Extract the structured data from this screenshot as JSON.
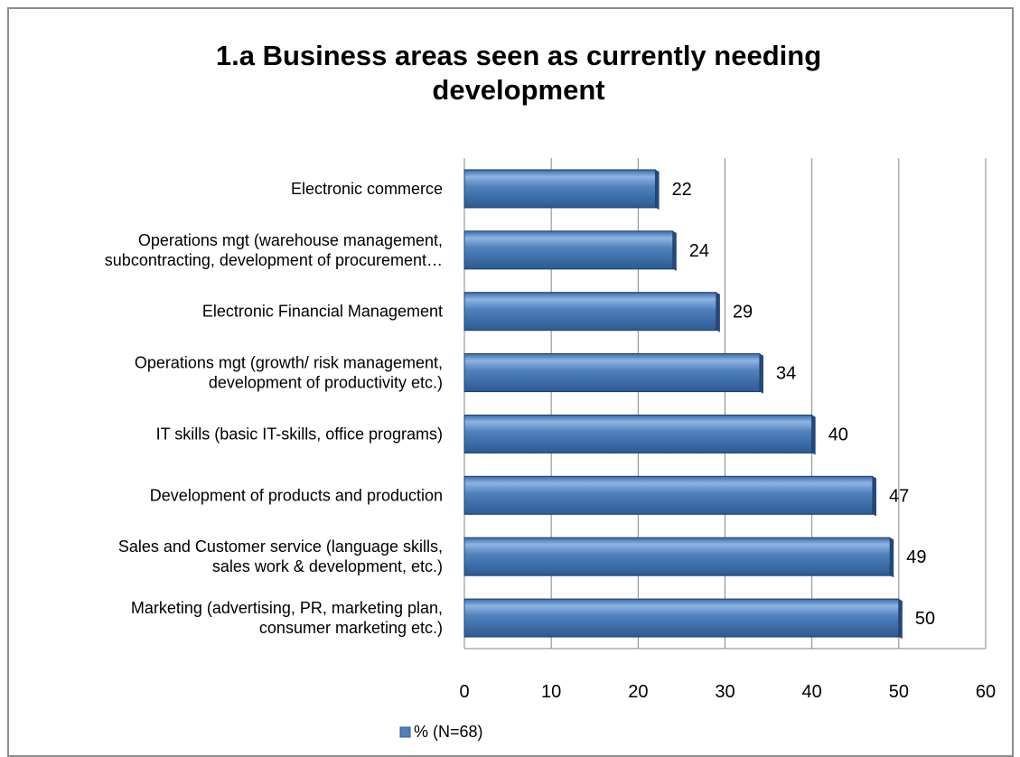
{
  "chart_data": {
    "type": "bar",
    "orientation": "horizontal",
    "title_lines": [
      "1.a Business areas seen as currently needing",
      "development"
    ],
    "categories": [
      [
        "Electronic commerce"
      ],
      [
        "Operations mgt (warehouse management,",
        "subcontracting, development of procurement…"
      ],
      [
        "Electronic Financial Management"
      ],
      [
        "Operations mgt (growth/ risk management,",
        "development of productivity etc.)"
      ],
      [
        "IT skills (basic IT-skills, office programs)"
      ],
      [
        "Development of products and production"
      ],
      [
        "Sales and Customer service (language skills,",
        "sales work & development, etc.)"
      ],
      [
        "Marketing (advertising, PR, marketing plan,",
        "consumer marketing etc.)"
      ]
    ],
    "series": [
      {
        "name": "% (N=68)",
        "values": [
          22,
          24,
          29,
          34,
          40,
          47,
          49,
          50
        ],
        "color": "#4f81bd"
      }
    ],
    "xlim": [
      0,
      60
    ],
    "xticks": [
      0,
      10,
      20,
      30,
      40,
      50,
      60
    ],
    "grid": "vertical",
    "legend_position": "bottom"
  }
}
